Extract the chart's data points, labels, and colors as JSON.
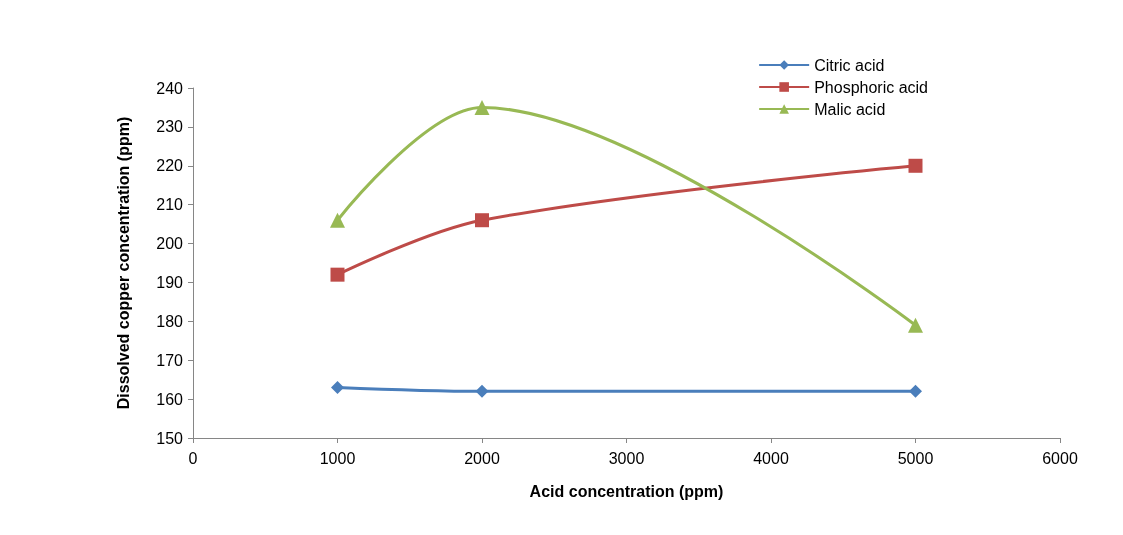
{
  "chart_data": {
    "type": "line",
    "xlabel": "Acid concentration (ppm)",
    "ylabel": "Dissolved copper concentration (ppm)",
    "x": [
      1000,
      2000,
      5000
    ],
    "series": [
      {
        "name": "Citric acid",
        "color": "#4a7ebb",
        "marker": "diamond",
        "values": [
          163,
          162,
          162
        ]
      },
      {
        "name": "Phosphoric acid",
        "color": "#be4b48",
        "marker": "square",
        "values": [
          192,
          206,
          220
        ]
      },
      {
        "name": "Malic acid",
        "color": "#98b954",
        "marker": "triangle",
        "values": [
          206,
          235,
          179
        ]
      }
    ],
    "xlim": [
      0,
      6000
    ],
    "xticks": [
      0,
      1000,
      2000,
      3000,
      4000,
      5000,
      6000
    ],
    "ylim": [
      150,
      240
    ],
    "yticks": [
      150,
      160,
      170,
      180,
      190,
      200,
      210,
      220,
      230,
      240
    ],
    "grid": false,
    "legend": "top right",
    "line_style": "solid"
  }
}
